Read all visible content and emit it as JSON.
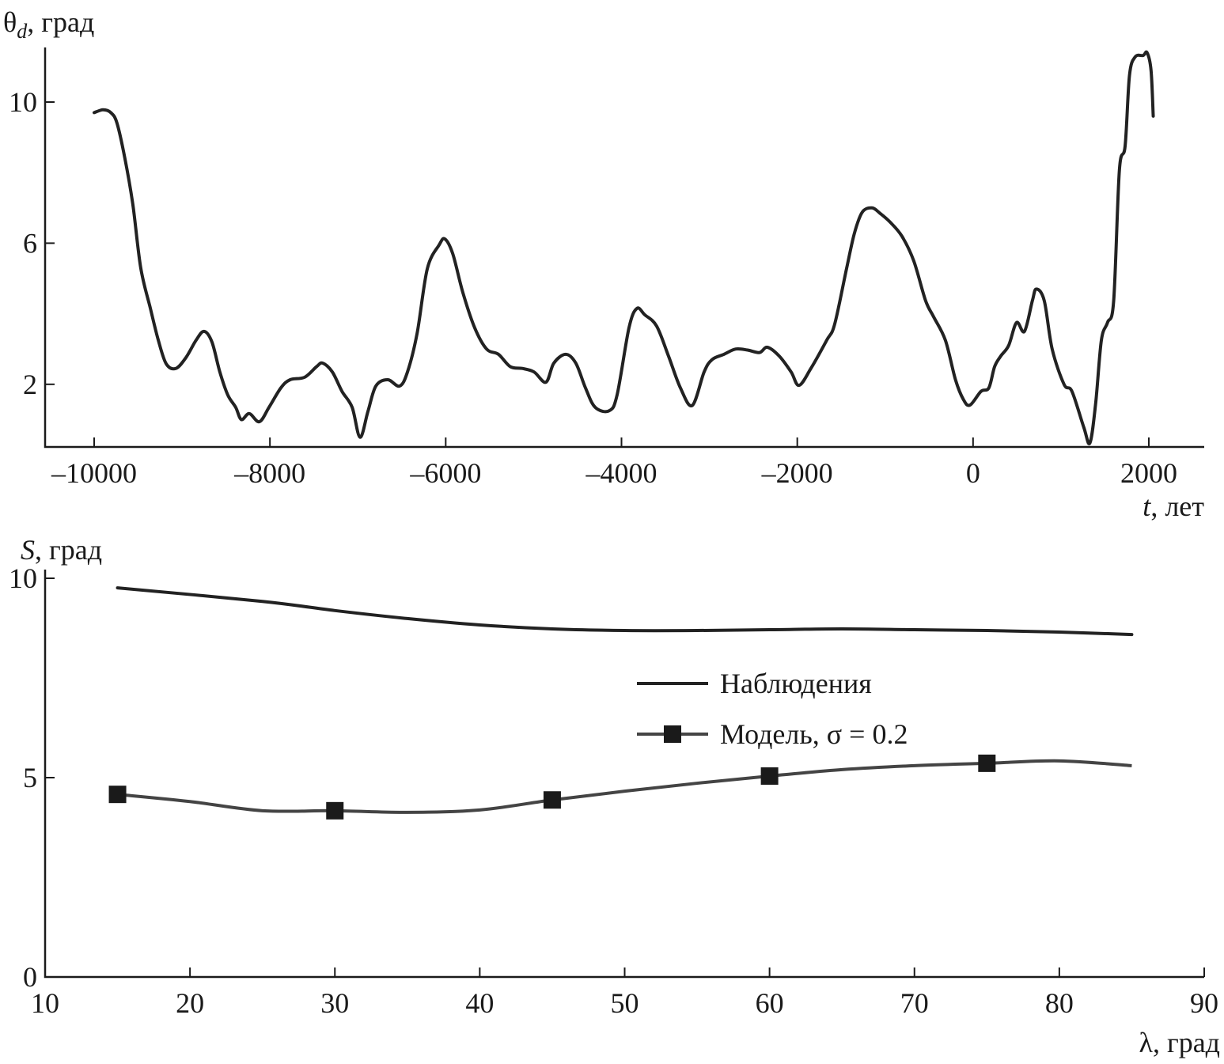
{
  "chart_data": [
    {
      "type": "line",
      "ylabel_symbol": "θ",
      "ylabel_sub": "d",
      "ylabel_unit": ", град",
      "xlabel_symbol": "t",
      "xlabel_unit": ", лет",
      "xlim": [
        -10560,
        2630
      ],
      "ylim": [
        0.2,
        11.55
      ],
      "xticks": [
        -10000,
        -8000,
        -6000,
        -4000,
        -2000,
        0,
        2000
      ],
      "xtick_labels": [
        "–10000",
        "–8000",
        "–6000",
        "–4000",
        "–2000",
        "0",
        "2000"
      ],
      "yticks": [
        2,
        6,
        10
      ],
      "ytick_labels": [
        "2",
        "6",
        "10"
      ],
      "grid": false,
      "x": [
        -10000,
        -9900,
        -9810,
        -9740,
        -9650,
        -9560,
        -9470,
        -9360,
        -9270,
        -9180,
        -9070,
        -8955,
        -8840,
        -8750,
        -8660,
        -8570,
        -8480,
        -8390,
        -8325,
        -8235,
        -8120,
        -8010,
        -7875,
        -7770,
        -7605,
        -7470,
        -7400,
        -7290,
        -7180,
        -7065,
        -6975,
        -6885,
        -6795,
        -6660,
        -6525,
        -6435,
        -6325,
        -6210,
        -6075,
        -6010,
        -5920,
        -5805,
        -5670,
        -5535,
        -5400,
        -5265,
        -5130,
        -4995,
        -4860,
        -4770,
        -4635,
        -4520,
        -4410,
        -4300,
        -4140,
        -4050,
        -3915,
        -3825,
        -3735,
        -3600,
        -3465,
        -3330,
        -3195,
        -3060,
        -2970,
        -2835,
        -2700,
        -2565,
        -2430,
        -2340,
        -2205,
        -2070,
        -1980,
        -1845,
        -1665,
        -1575,
        -1440,
        -1350,
        -1260,
        -1150,
        -1060,
        -945,
        -810,
        -675,
        -540,
        -450,
        -315,
        -200,
        -110,
        -35,
        90,
        180,
        245,
        315,
        405,
        495,
        585,
        675,
        720,
        810,
        900,
        1035,
        1125,
        1260,
        1330,
        1395,
        1460,
        1530,
        1600,
        1665,
        1730,
        1780,
        1845,
        1935,
        1980,
        2025,
        2050
      ],
      "y": [
        9.7,
        9.78,
        9.7,
        9.4,
        8.4,
        7.1,
        5.3,
        4.15,
        3.25,
        2.58,
        2.45,
        2.76,
        3.25,
        3.5,
        3.2,
        2.35,
        1.7,
        1.35,
        1.0,
        1.17,
        0.94,
        1.35,
        1.9,
        2.13,
        2.2,
        2.5,
        2.6,
        2.35,
        1.8,
        1.35,
        0.5,
        1.23,
        1.95,
        2.13,
        1.95,
        2.35,
        3.45,
        5.27,
        5.95,
        6.12,
        5.7,
        4.6,
        3.6,
        3.0,
        2.85,
        2.5,
        2.45,
        2.35,
        2.06,
        2.6,
        2.85,
        2.6,
        1.9,
        1.35,
        1.25,
        1.7,
        3.6,
        4.15,
        3.97,
        3.65,
        2.8,
        1.9,
        1.4,
        2.35,
        2.7,
        2.85,
        3.0,
        2.97,
        2.9,
        3.05,
        2.8,
        2.35,
        1.97,
        2.45,
        3.25,
        3.7,
        5.27,
        6.28,
        6.88,
        7.0,
        6.85,
        6.6,
        6.2,
        5.5,
        4.37,
        3.92,
        3.25,
        2.13,
        1.57,
        1.41,
        1.8,
        1.9,
        2.5,
        2.8,
        3.1,
        3.75,
        3.5,
        4.37,
        4.7,
        4.37,
        3.0,
        2.0,
        1.8,
        0.78,
        0.34,
        1.46,
        3.25,
        3.75,
        4.37,
        8.07,
        8.75,
        10.76,
        11.28,
        11.32,
        11.4,
        10.9,
        9.6
      ]
    },
    {
      "type": "line",
      "ylabel_symbol": "S",
      "ylabel_unit": ", град",
      "xlabel_symbol": "λ",
      "xlabel_unit": ", град",
      "xlim": [
        10,
        90
      ],
      "ylim": [
        0,
        10
      ],
      "xticks": [
        10,
        20,
        30,
        40,
        50,
        60,
        70,
        80,
        90
      ],
      "yticks": [
        0,
        5,
        10
      ],
      "grid": false,
      "legend_position": "center-right",
      "series": [
        {
          "name": "Наблюдения",
          "color": "#222222",
          "marker": "none",
          "x": [
            15,
            25,
            30,
            35,
            40,
            45,
            50,
            55,
            60,
            65,
            70,
            75,
            80,
            85
          ],
          "y": [
            9.76,
            9.42,
            9.19,
            8.99,
            8.83,
            8.73,
            8.69,
            8.69,
            8.71,
            8.73,
            8.71,
            8.69,
            8.65,
            8.59
          ]
        },
        {
          "name": "Модель, σ = 0.2",
          "color": "#444444",
          "marker": "square",
          "x": [
            15,
            20,
            25,
            30,
            35,
            40,
            45,
            50,
            55,
            60,
            65,
            70,
            75,
            80,
            85
          ],
          "y": [
            4.58,
            4.4,
            4.17,
            4.17,
            4.13,
            4.19,
            4.44,
            4.66,
            4.86,
            5.04,
            5.2,
            5.3,
            5.36,
            5.42,
            5.3
          ],
          "marker_x": [
            15,
            30,
            45,
            60,
            75
          ]
        }
      ]
    }
  ]
}
